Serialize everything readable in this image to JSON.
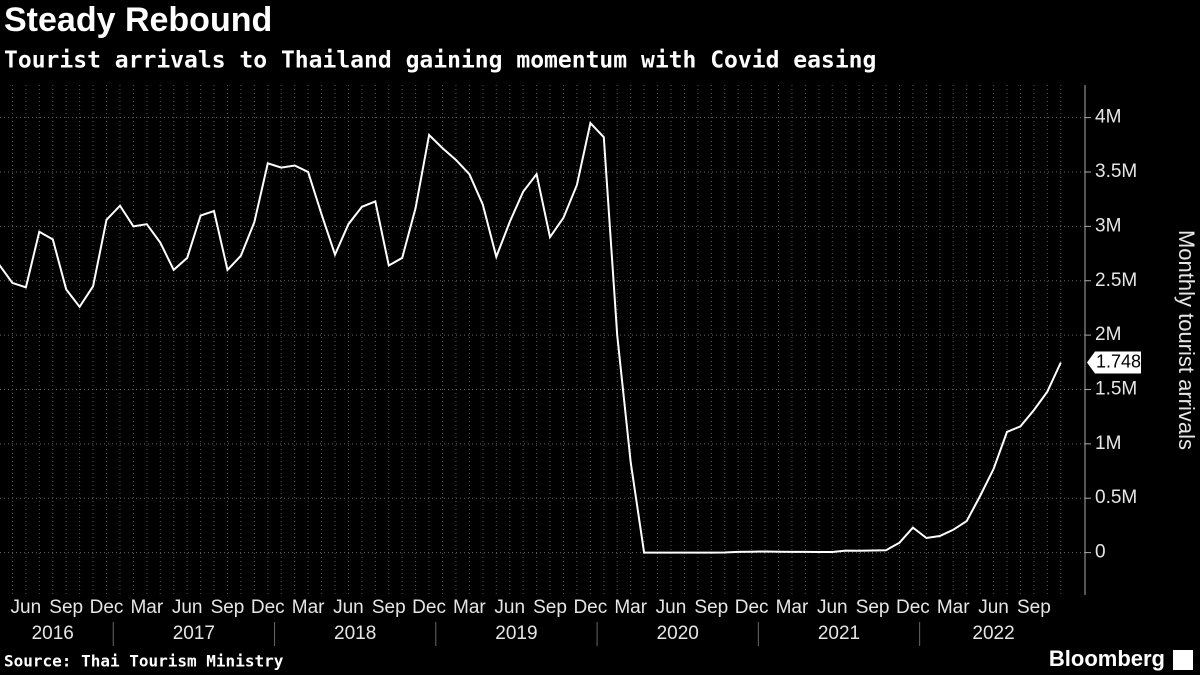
{
  "chart_data": {
    "type": "line",
    "title": "Steady Rebound",
    "subtitle": "Tourist arrivals to Thailand gaining momentum with Covid easing",
    "y_axis_label": "Monthly tourist arrivals",
    "source": "Source: Thai Tourism Ministry",
    "brand": "Bloomberg",
    "color": "#ffffff",
    "grid": true,
    "categories": [
      null,
      null,
      "Jun",
      null,
      null,
      "Sep",
      null,
      null,
      "Dec",
      null,
      null,
      "Mar",
      null,
      null,
      "Jun",
      null,
      null,
      "Sep",
      null,
      null,
      "Dec",
      null,
      null,
      "Mar",
      null,
      null,
      "Jun",
      null,
      null,
      "Sep",
      null,
      null,
      "Dec",
      null,
      null,
      "Mar",
      null,
      null,
      "Jun",
      null,
      null,
      "Sep",
      null,
      null,
      "Dec",
      null,
      null,
      "Mar",
      null,
      null,
      "Jun",
      null,
      null,
      "Sep",
      null,
      null,
      "Dec",
      null,
      null,
      "Mar",
      null,
      null,
      "Jun",
      null,
      null,
      "Sep",
      null,
      null,
      "Dec",
      null,
      null,
      "Mar",
      null,
      null,
      "Jun",
      null,
      null,
      "Sep",
      null,
      null
    ],
    "years": [
      "2016",
      "2017",
      "2018",
      "2019",
      "2020",
      "2021",
      "2022"
    ],
    "values": [
      2.65,
      2.48,
      2.44,
      2.95,
      2.88,
      2.42,
      2.26,
      2.45,
      3.06,
      3.19,
      3.0,
      3.02,
      2.85,
      2.6,
      2.71,
      3.1,
      3.14,
      2.6,
      2.73,
      3.04,
      3.58,
      3.54,
      3.56,
      3.5,
      3.11,
      2.74,
      3.02,
      3.18,
      3.23,
      2.64,
      2.71,
      3.17,
      3.84,
      3.72,
      3.61,
      3.48,
      3.2,
      2.72,
      3.04,
      3.32,
      3.48,
      2.9,
      3.08,
      3.38,
      3.95,
      3.82,
      2.0,
      0.83,
      0,
      0,
      0,
      0,
      0,
      0,
      0.001,
      0.006,
      0.007,
      0.01,
      0.007,
      0.006,
      0.006,
      0.005,
      0.005,
      0.018,
      0.017,
      0.019,
      0.022,
      0.091,
      0.23,
      0.134,
      0.153,
      0.21,
      0.29,
      0.52,
      0.77,
      1.11,
      1.16,
      1.31,
      1.48,
      1.748
    ],
    "value_labels": [
      null,
      null,
      null,
      null,
      null,
      null,
      null,
      null,
      null,
      null,
      null,
      null,
      null,
      null,
      null,
      null,
      null,
      null,
      null,
      null,
      null,
      null,
      null,
      null,
      null,
      null,
      null,
      null,
      null,
      null,
      null,
      null,
      null,
      null,
      null,
      null,
      null,
      null,
      null,
      null,
      null,
      null,
      null,
      null,
      null,
      null,
      null,
      null,
      null,
      null,
      null,
      null,
      null,
      null,
      null,
      null,
      null,
      null,
      null,
      null,
      null,
      null,
      null,
      null,
      null,
      null,
      null,
      null,
      null,
      null,
      null,
      null,
      null,
      null,
      null,
      null,
      null,
      null,
      null,
      "1.748M"
    ],
    "ylim": [
      -0.39,
      4.3
    ],
    "yticks": [
      0,
      {
        "value": 0.5,
        "label": "0.5M"
      },
      {
        "value": 1,
        "label": "1M"
      },
      {
        "value": 1.5,
        "label": "1.5M"
      },
      {
        "value": 2,
        "label": "2M"
      },
      {
        "value": 2.5,
        "label": "2.5M"
      },
      {
        "value": 3,
        "label": "3M"
      },
      {
        "value": 3.5,
        "label": "3.5M"
      },
      {
        "value": 4,
        "label": "4M"
      }
    ]
  }
}
